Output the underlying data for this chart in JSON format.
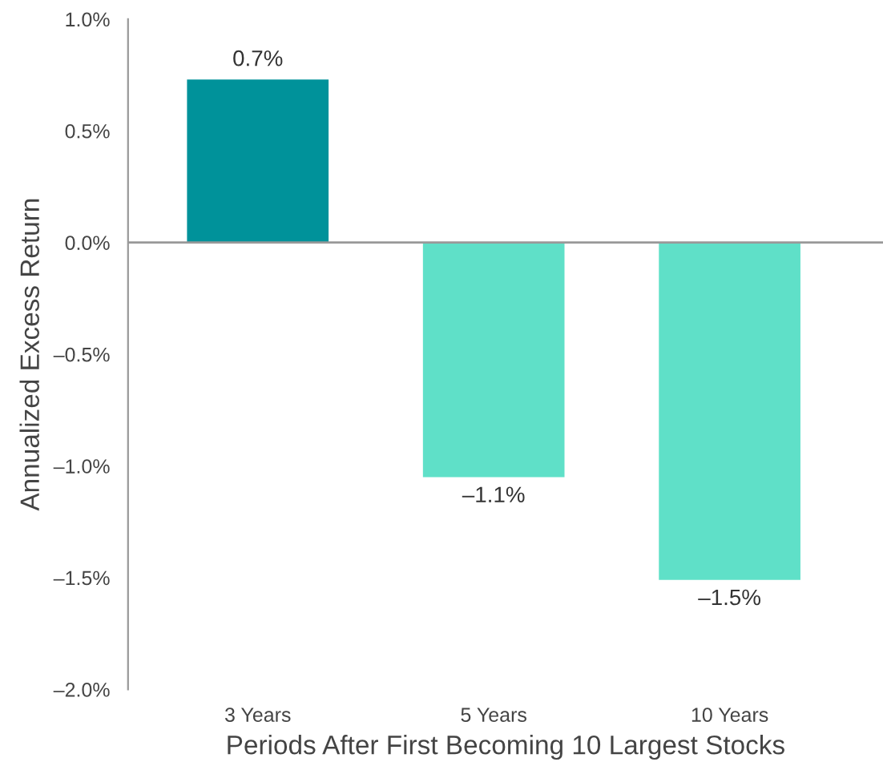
{
  "chart_data": {
    "type": "bar",
    "xlabel": "Periods After First Becoming 10 Largest Stocks",
    "ylabel": "Annualized Excess Return",
    "categories": [
      "3 Years",
      "5 Years",
      "10 Years"
    ],
    "values": [
      0.73,
      -1.05,
      -1.51
    ],
    "colors": [
      "#00929a",
      "#5fe0c8",
      "#5fe0c8"
    ],
    "value_labels": [
      "0.7%",
      "–1.1%",
      "–1.5%"
    ],
    "ylim": [
      -2.0,
      1.0
    ],
    "yticks": [
      {
        "value": 1.0,
        "label": "1.0%"
      },
      {
        "value": 0.5,
        "label": "0.5%"
      },
      {
        "value": 0.0,
        "label": "0.0%"
      },
      {
        "value": -0.5,
        "label": "–0.5%"
      },
      {
        "value": -1.0,
        "label": "–1.0%"
      },
      {
        "value": -1.5,
        "label": "–1.5%"
      },
      {
        "value": -2.0,
        "label": "–2.0%"
      }
    ],
    "ref_lines": [
      {
        "axis": "y",
        "value": 0.0,
        "color": "#999999"
      }
    ],
    "grid": false,
    "legend": false
  }
}
